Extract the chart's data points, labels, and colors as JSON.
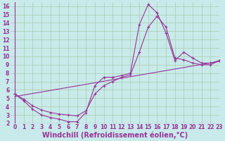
{
  "background_color": "#c8eaea",
  "line_color": "#993399",
  "grid_color": "#aaccaa",
  "xlabel": "Windchill (Refroidissement éolien,°C)",
  "xlim": [
    -0.5,
    23
  ],
  "ylim": [
    2,
    16.5
  ],
  "xticks": [
    0,
    1,
    2,
    3,
    4,
    5,
    6,
    7,
    8,
    9,
    10,
    11,
    12,
    13,
    14,
    15,
    16,
    17,
    18,
    19,
    20,
    21,
    22,
    23
  ],
  "yticks": [
    2,
    3,
    4,
    5,
    6,
    7,
    8,
    9,
    10,
    11,
    12,
    13,
    14,
    15,
    16
  ],
  "line1_x": [
    0,
    1,
    2,
    3,
    4,
    5,
    6,
    7,
    8,
    9,
    10,
    11,
    12,
    13,
    14,
    15,
    16,
    17,
    18,
    19,
    20,
    21,
    22,
    23
  ],
  "line1_y": [
    5.5,
    4.7,
    3.7,
    3.0,
    2.7,
    2.5,
    2.2,
    2.2,
    3.3,
    6.5,
    7.5,
    7.5,
    7.7,
    8.0,
    13.8,
    16.2,
    15.2,
    12.8,
    9.5,
    10.5,
    9.8,
    9.2,
    9.2,
    9.5
  ],
  "line2_x": [
    0,
    1,
    2,
    3,
    4,
    5,
    6,
    7,
    8,
    9,
    10,
    11,
    12,
    13,
    14,
    15,
    16,
    17,
    18,
    19,
    20,
    21,
    22,
    23
  ],
  "line2_y": [
    5.5,
    4.9,
    4.1,
    3.6,
    3.3,
    3.1,
    3.0,
    2.9,
    3.5,
    5.5,
    6.5,
    7.0,
    7.5,
    7.8,
    10.5,
    13.5,
    14.8,
    13.5,
    9.8,
    9.6,
    9.2,
    9.0,
    9.0,
    9.5
  ],
  "line3_x": [
    0,
    23
  ],
  "line3_y": [
    5.2,
    9.4
  ],
  "font_color": "#993399",
  "tick_fontsize": 5.5,
  "label_fontsize": 7.0
}
